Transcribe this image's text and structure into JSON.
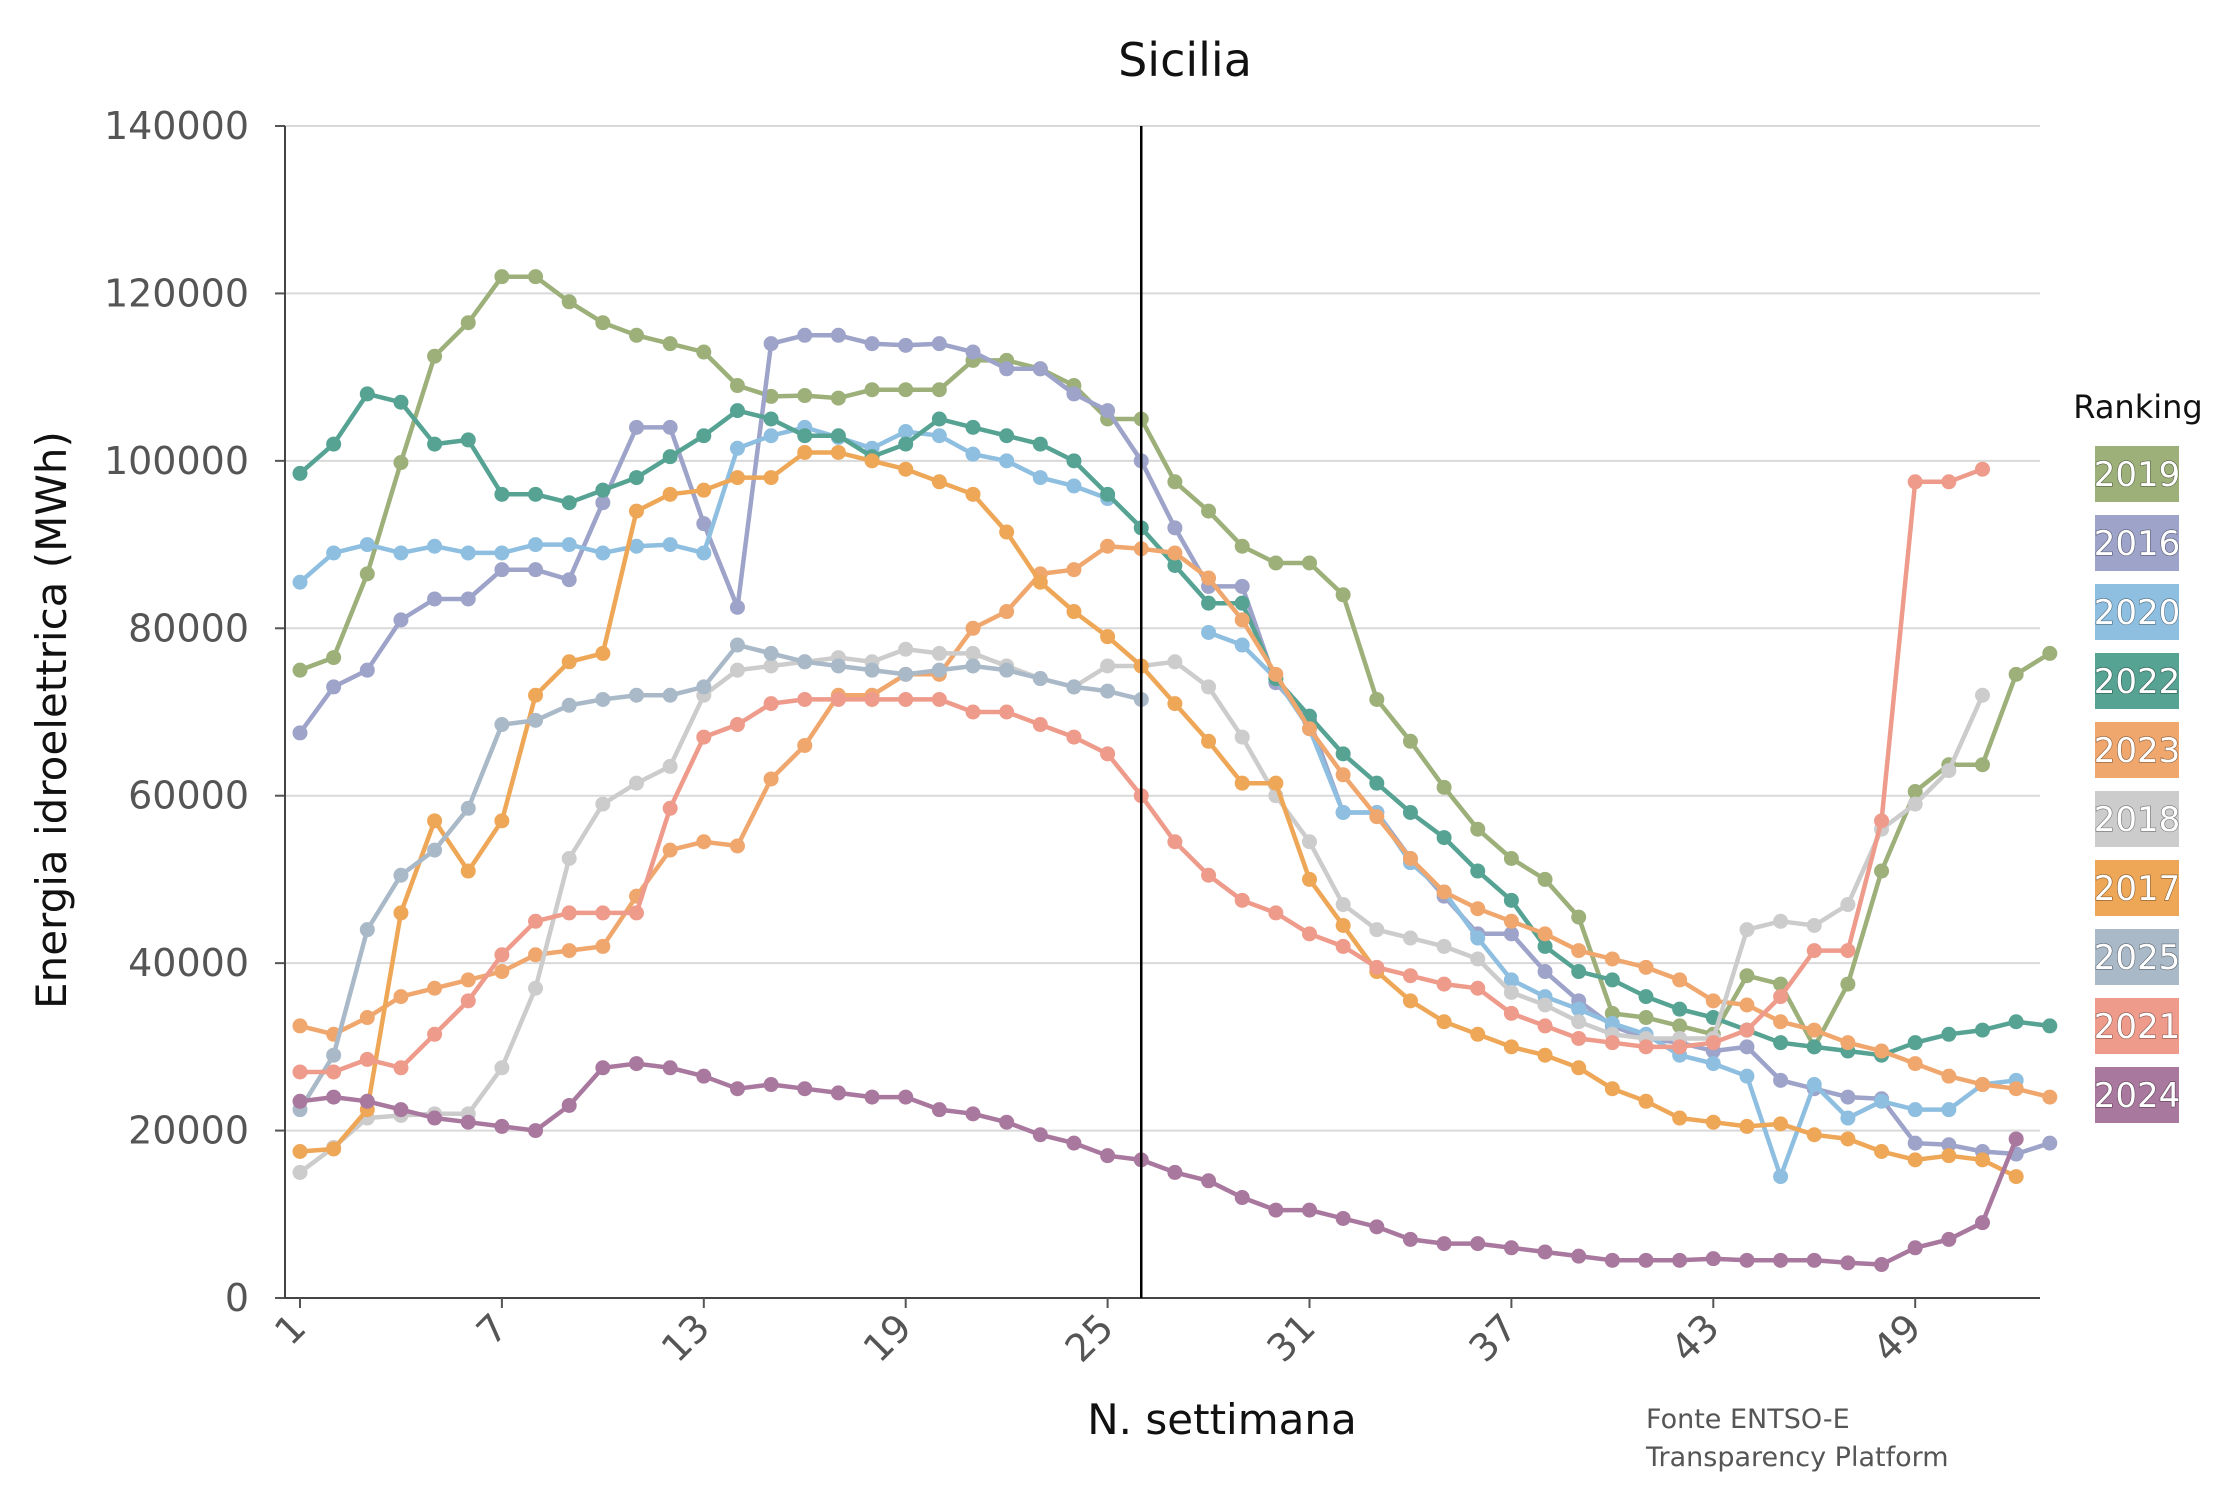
{
  "chart_data": {
    "type": "line",
    "title": "Sicilia",
    "xlabel": "N. settimana",
    "ylabel": "Energia idroelettrica (MWh)",
    "xlim": [
      1,
      52
    ],
    "ylim": [
      0,
      140000
    ],
    "x_ticks": [
      1,
      7,
      13,
      19,
      25,
      31,
      37,
      43,
      49
    ],
    "y_ticks": [
      0,
      20000,
      40000,
      60000,
      80000,
      100000,
      120000,
      140000
    ],
    "grid": "horizontal",
    "vertical_marker_x": 26,
    "legend": {
      "title": "Ranking",
      "position": "right"
    },
    "source_note": [
      "Fonte ENTSO-E",
      "Transparency Platform"
    ],
    "series": [
      {
        "name": "2019",
        "color": "#9db07a",
        "values": [
          75000,
          76500,
          86500,
          99800,
          112500,
          116500,
          122000,
          122000,
          119000,
          116500,
          115000,
          114000,
          113000,
          109000,
          107700,
          107800,
          107500,
          108500,
          108500,
          108500,
          112000,
          112000,
          111000,
          109000,
          105000,
          105000,
          97500,
          94000,
          89800,
          87800,
          87800,
          84000,
          71500,
          66500,
          61000,
          56000,
          52500,
          50000,
          45500,
          34000,
          33500,
          32500,
          31500,
          38500,
          37500,
          30000,
          37500,
          51000,
          60500,
          63700,
          63700,
          74500,
          77000
        ]
      },
      {
        "name": "2016",
        "color": "#9da3c9",
        "values": [
          67500,
          73000,
          75000,
          81000,
          83500,
          83500,
          87000,
          87000,
          85800,
          95000,
          104000,
          104000,
          92500,
          82500,
          114000,
          115000,
          115000,
          114000,
          113800,
          114000,
          113000,
          111000,
          111000,
          108000,
          106000,
          100000,
          92000,
          85000,
          85000,
          73500,
          69000,
          58000,
          58000,
          52500,
          48000,
          43500,
          43500,
          39000,
          35500,
          32500,
          31000,
          30500,
          29500,
          30000,
          26000,
          25000,
          24000,
          23800,
          18500,
          18300,
          17500,
          17200,
          18500
        ]
      },
      {
        "name": "2020",
        "color": "#8ebfe0",
        "values": [
          85500,
          89000,
          90000,
          89000,
          89800,
          89000,
          89000,
          90000,
          90000,
          89000,
          89800,
          90000,
          89000,
          101500,
          103000,
          104000,
          102800,
          101500,
          103500,
          103000,
          100800,
          100000,
          98000,
          97000,
          95500,
          null,
          null,
          79500,
          78000,
          74000,
          68000,
          58000,
          58000,
          52000,
          48500,
          43000,
          38000,
          36000,
          34500,
          32800,
          31500,
          29000,
          28000,
          26500,
          14500,
          25500,
          21500,
          23500,
          22500,
          22500,
          25500,
          26000
        ]
      },
      {
        "name": "2022",
        "color": "#56a394",
        "values": [
          98500,
          102000,
          108000,
          107000,
          102000,
          102500,
          96000,
          96000,
          95000,
          96500,
          98000,
          100500,
          103000,
          106000,
          105000,
          103000,
          103000,
          100500,
          102000,
          105000,
          104000,
          103000,
          102000,
          100000,
          96000,
          92000,
          87500,
          83000,
          83000,
          74000,
          69500,
          65000,
          61500,
          58000,
          55000,
          51000,
          47500,
          42000,
          39000,
          38000,
          36000,
          34500,
          33500,
          32000,
          30500,
          30000,
          29500,
          29000,
          30500,
          31500,
          32000,
          33000,
          32500
        ]
      },
      {
        "name": "2023",
        "color": "#f0a76e",
        "values": [
          32500,
          31500,
          33500,
          36000,
          37000,
          38000,
          39000,
          41000,
          41500,
          42000,
          48000,
          53500,
          54500,
          54000,
          62000,
          66000,
          72000,
          72000,
          74500,
          74500,
          80000,
          82000,
          86500,
          87000,
          89800,
          89500,
          89000,
          86000,
          81000,
          74500,
          68000,
          62500,
          57500,
          52500,
          48500,
          46500,
          45000,
          43500,
          41500,
          40500,
          39500,
          38000,
          35500,
          35000,
          33000,
          32000,
          30500,
          29500,
          28000,
          26500,
          25500,
          25000,
          24000
        ]
      },
      {
        "name": "2018",
        "color": "#cccccc",
        "values": [
          15000,
          18000,
          21500,
          21800,
          22000,
          22000,
          27500,
          37000,
          52500,
          59000,
          61500,
          63500,
          72000,
          75000,
          75500,
          76000,
          76500,
          76000,
          77500,
          77000,
          77000,
          75500,
          74000,
          73000,
          75500,
          75500,
          76000,
          73000,
          67000,
          60000,
          54500,
          47000,
          44000,
          43000,
          42000,
          40500,
          36500,
          35000,
          33000,
          31500,
          31000,
          31000,
          31000,
          44000,
          45000,
          44500,
          47000,
          56000,
          59000,
          63000,
          72000
        ]
      },
      {
        "name": "2017",
        "color": "#eea657",
        "values": [
          17500,
          17800,
          22500,
          46000,
          57000,
          51000,
          57000,
          72000,
          76000,
          77000,
          94000,
          96000,
          96500,
          98000,
          98000,
          101000,
          101000,
          100000,
          99000,
          97500,
          96000,
          91500,
          85500,
          82000,
          79000,
          75500,
          71000,
          66500,
          61500,
          61500,
          50000,
          44500,
          39000,
          35500,
          33000,
          31500,
          30000,
          29000,
          27500,
          25000,
          23500,
          21500,
          21000,
          20500,
          20800,
          19500,
          19000,
          17500,
          16500,
          17000,
          16500,
          14500
        ]
      },
      {
        "name": "2025",
        "color": "#a9b9c8",
        "values": [
          22500,
          29000,
          44000,
          50500,
          53500,
          58500,
          68500,
          69000,
          70800,
          71500,
          72000,
          72000,
          73000,
          78000,
          77000,
          76000,
          75500,
          75000,
          74500,
          75000,
          75500,
          75000,
          74000,
          73000,
          72500,
          71500
        ]
      },
      {
        "name": "2021",
        "color": "#ee9b8b",
        "values": [
          27000,
          27000,
          28500,
          27500,
          31500,
          35500,
          41000,
          45000,
          46000,
          46000,
          46000,
          58500,
          67000,
          68500,
          71000,
          71500,
          71500,
          71500,
          71500,
          71500,
          70000,
          70000,
          68500,
          67000,
          65000,
          60000,
          54500,
          50500,
          47500,
          46000,
          43500,
          42000,
          39500,
          38500,
          37500,
          37000,
          34000,
          32500,
          31000,
          30500,
          30000,
          30000,
          30500,
          32000,
          36000,
          41500,
          41500,
          57000,
          97500,
          97500,
          99000
        ]
      },
      {
        "name": "2024",
        "color": "#a9789e",
        "values": [
          23500,
          24000,
          23500,
          22500,
          21500,
          21000,
          20500,
          20000,
          23000,
          27500,
          28000,
          27500,
          26500,
          25000,
          25500,
          25000,
          24500,
          24000,
          24000,
          22500,
          22000,
          21000,
          19500,
          18500,
          17000,
          16500,
          15000,
          14000,
          12000,
          10500,
          10500,
          9500,
          8500,
          7000,
          6500,
          6500,
          6000,
          5500,
          5000,
          4500,
          4500,
          4500,
          4700,
          4500,
          4500,
          4500,
          4200,
          4000,
          6000,
          7000,
          9000,
          19000
        ]
      }
    ]
  }
}
